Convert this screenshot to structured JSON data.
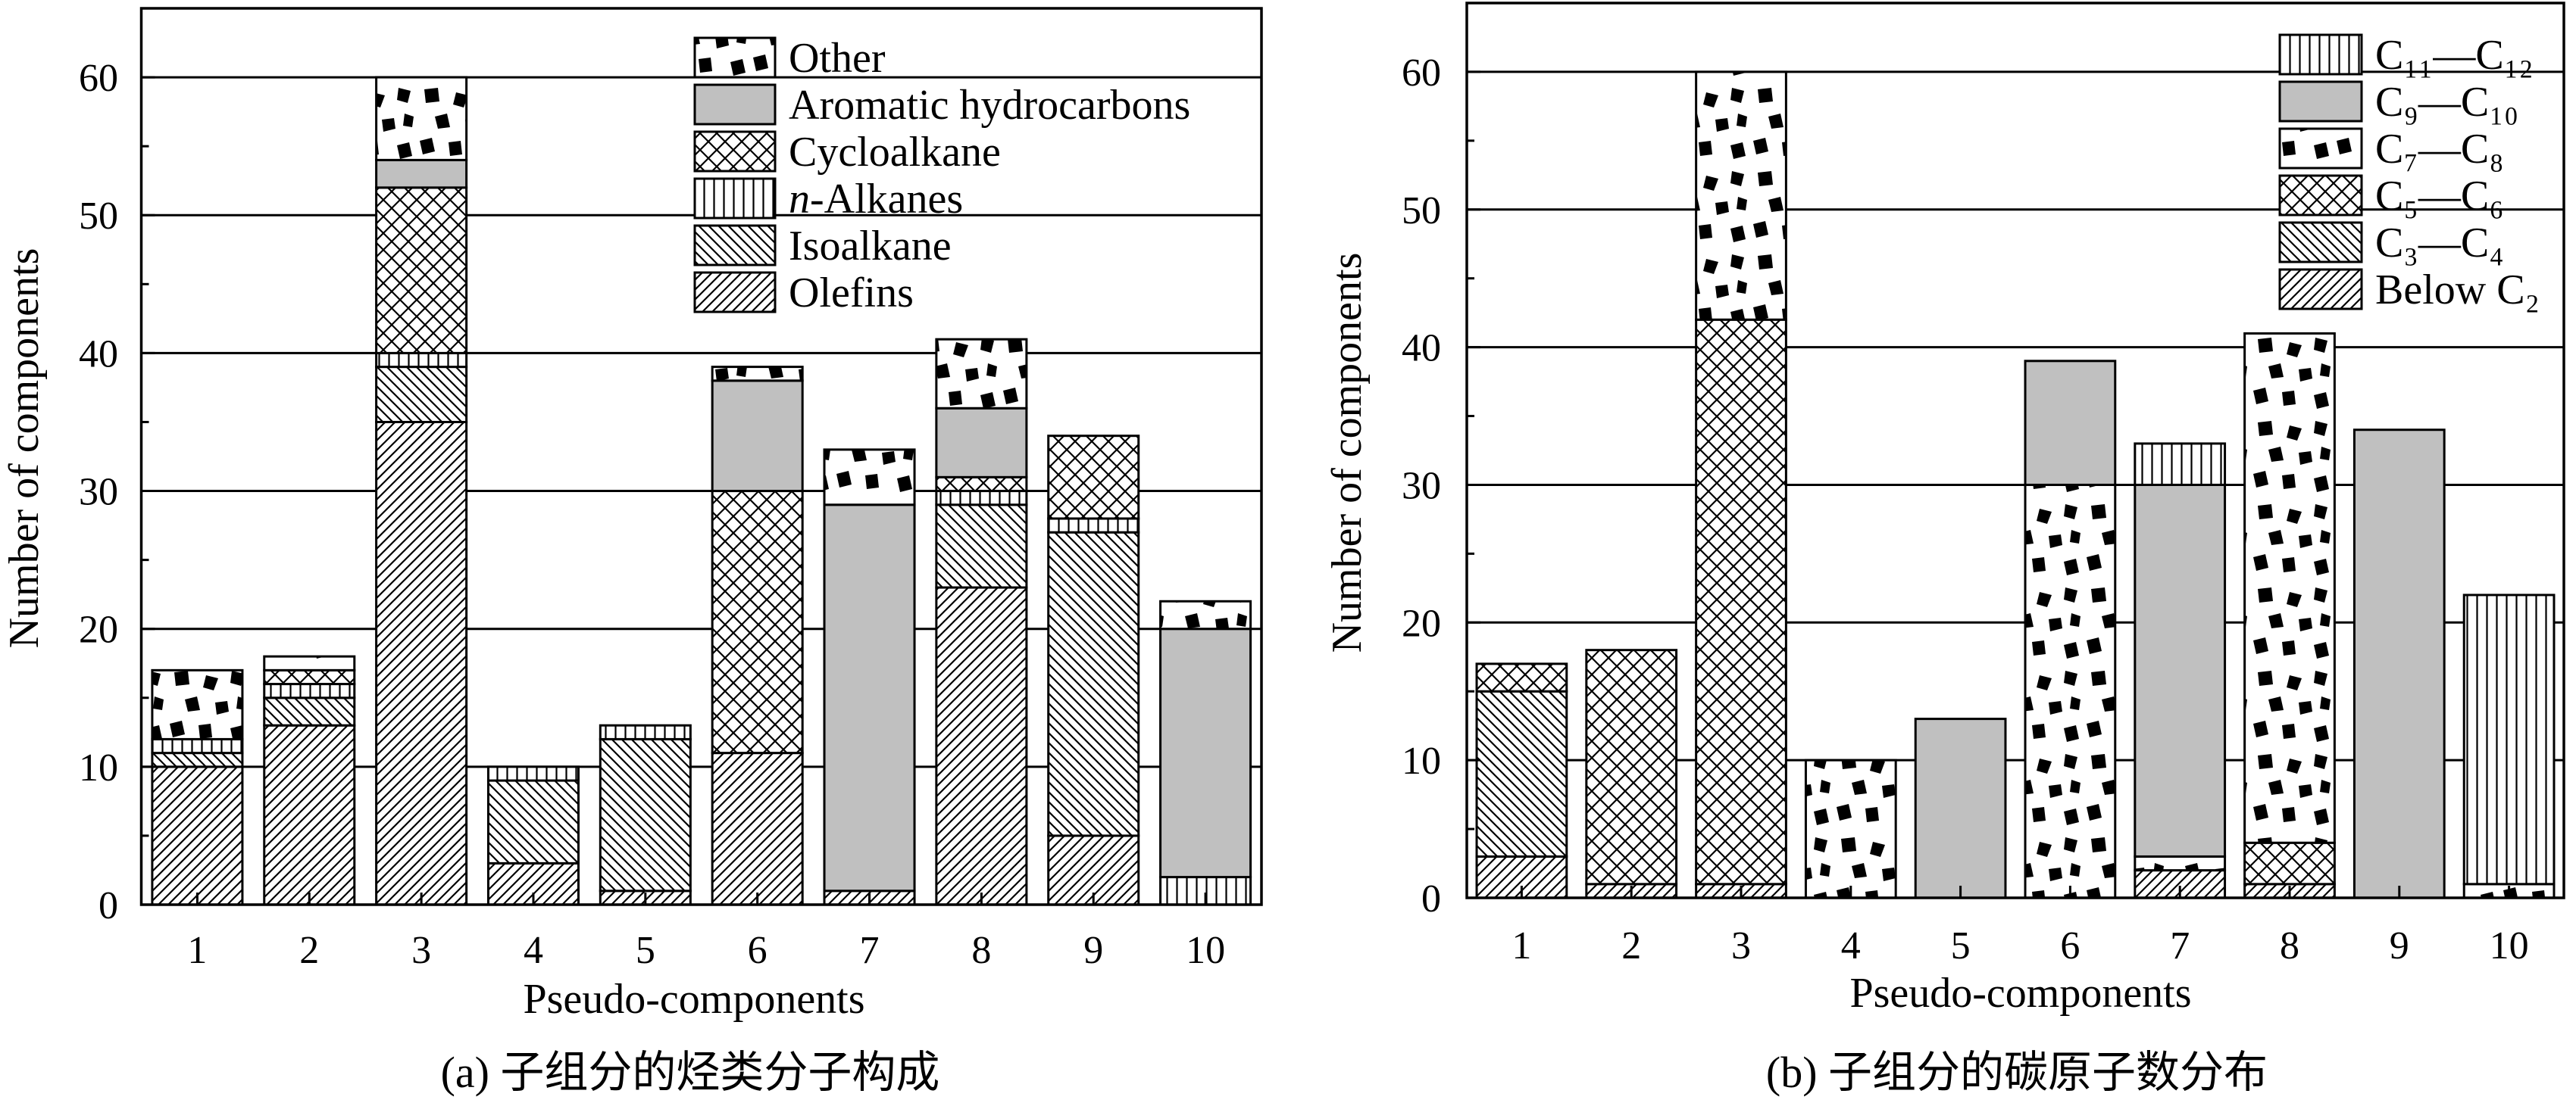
{
  "chart_data": [
    {
      "type": "bar",
      "stacked": true,
      "caption": "(a) 子组分的烃类分子构成",
      "xlabel": "Pseudo-components",
      "ylabel": "Number of components",
      "categories": [
        "1",
        "2",
        "3",
        "4",
        "5",
        "6",
        "7",
        "8",
        "9",
        "10"
      ],
      "ylim": [
        0,
        65
      ],
      "yticks": [
        0,
        10,
        20,
        30,
        40,
        50,
        60
      ],
      "grid": true,
      "legend_position": "top-right",
      "series": [
        {
          "name": "Olefins",
          "fill": "hatch-forward",
          "values": [
            10,
            13,
            35,
            3,
            1,
            11,
            1,
            23,
            5,
            0
          ]
        },
        {
          "name": "Isoalkane",
          "fill": "hatch-back",
          "values": [
            1,
            2,
            4,
            6,
            11,
            0,
            0,
            6,
            22,
            0
          ]
        },
        {
          "name": "n-Alkanes",
          "fill": "hatch-vertical",
          "values": [
            1,
            1,
            1,
            1,
            1,
            0,
            0,
            1,
            1,
            2
          ]
        },
        {
          "name": "Cycloalkane",
          "fill": "crosshatch",
          "values": [
            0,
            1,
            12,
            0,
            0,
            19,
            0,
            1,
            6,
            0
          ]
        },
        {
          "name": "Aromatic hydrocarbons",
          "fill": "#c0c0c0",
          "values": [
            0,
            0,
            2,
            0,
            0,
            8,
            28,
            5,
            0,
            18
          ]
        },
        {
          "name": "Other",
          "fill": "confetti",
          "values": [
            5,
            1,
            6,
            0,
            0,
            1,
            4,
            5,
            0,
            2
          ]
        }
      ]
    },
    {
      "type": "bar",
      "stacked": true,
      "caption": "(b) 子组分的碳原子数分布",
      "xlabel": "Pseudo-components",
      "ylabel": "Number of components",
      "categories": [
        "1",
        "2",
        "3",
        "4",
        "5",
        "6",
        "7",
        "8",
        "9",
        "10"
      ],
      "ylim": [
        0,
        65
      ],
      "yticks": [
        0,
        10,
        20,
        30,
        40,
        50,
        60
      ],
      "grid": true,
      "legend_position": "top-right",
      "series": [
        {
          "name": "Below C₂",
          "fill": "hatch-forward",
          "values": [
            3,
            1,
            1,
            0,
            0,
            0,
            2,
            1,
            0,
            0
          ]
        },
        {
          "name": "C₃—C₄",
          "fill": "hatch-back",
          "values": [
            12,
            0,
            0,
            0,
            0,
            0,
            0,
            0,
            0,
            0
          ]
        },
        {
          "name": "C₅—C₆",
          "fill": "crosshatch",
          "values": [
            2,
            17,
            41,
            0,
            0,
            0,
            0,
            3,
            0,
            0
          ]
        },
        {
          "name": "C₇—C₈",
          "fill": "confetti",
          "values": [
            0,
            0,
            18,
            10,
            0,
            30,
            1,
            37,
            0,
            1
          ]
        },
        {
          "name": "C₉—C₁₀",
          "fill": "#c0c0c0",
          "values": [
            0,
            0,
            0,
            0,
            13,
            9,
            27,
            0,
            34,
            0
          ]
        },
        {
          "name": "C₁₁—C₁₂",
          "fill": "hatch-vertical",
          "values": [
            0,
            0,
            0,
            0,
            0,
            0,
            3,
            0,
            0,
            21
          ]
        }
      ]
    }
  ]
}
